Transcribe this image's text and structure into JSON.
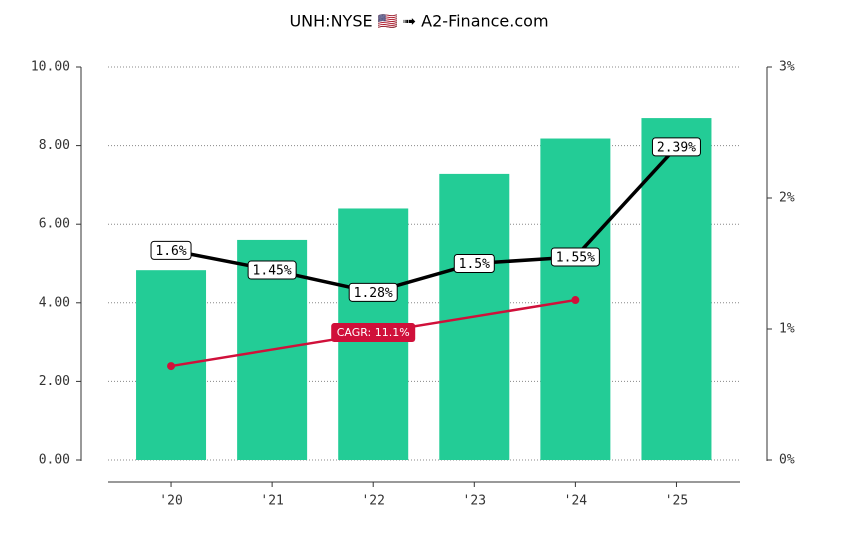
{
  "chart_data": {
    "type": "bar",
    "title": "UNH:NYSE 🇺🇸 ➟ A2-Finance.com",
    "categories": [
      "'20",
      "'21",
      "'22",
      "'23",
      "'24",
      "'25"
    ],
    "ylim": [
      0,
      10
    ],
    "yticks": [
      {
        "value": 0,
        "label": "0.00"
      },
      {
        "value": 2,
        "label": "2.00"
      },
      {
        "value": 4,
        "label": "4.00"
      },
      {
        "value": 6,
        "label": "6.00"
      },
      {
        "value": 8,
        "label": "8.00"
      },
      {
        "value": 10,
        "label": "10.00"
      }
    ],
    "y2lim": [
      0,
      3
    ],
    "y2ticks": [
      {
        "value": 0,
        "label": "0%"
      },
      {
        "value": 1,
        "label": "1%"
      },
      {
        "value": 2,
        "label": "2%"
      },
      {
        "value": 3,
        "label": "3%"
      }
    ],
    "grid": true,
    "series": [
      {
        "type": "bar",
        "color": "#23cc96",
        "values": [
          4.83,
          5.6,
          6.4,
          7.28,
          8.18,
          8.7
        ]
      },
      {
        "type": "line",
        "axis": "y2",
        "color": "#000000",
        "values": [
          1.6,
          1.45,
          1.28,
          1.5,
          1.55,
          2.39
        ],
        "value_labels": [
          "1.6%",
          "1.45%",
          "1.28%",
          "1.5%",
          "1.55%",
          "2.39%"
        ]
      },
      {
        "type": "line",
        "name": "CAGR: 11.1%",
        "color": "#d0103a",
        "values": [
          2.39,
          2.81,
          3.23,
          3.65,
          4.07,
          null
        ]
      }
    ]
  }
}
